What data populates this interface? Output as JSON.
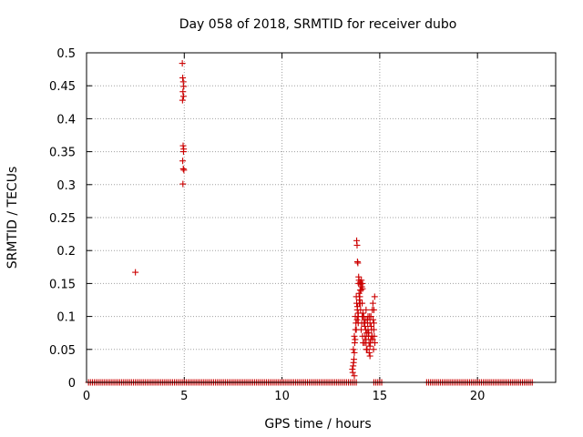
{
  "chart_data": {
    "type": "scatter",
    "title": "Day 058 of 2018, SRMTID for receiver dubo",
    "xlabel": "GPS time / hours",
    "ylabel": "SRMTID / TECUs",
    "xlim": [
      0,
      24
    ],
    "ylim": [
      0,
      0.5
    ],
    "xticks": [
      0,
      5,
      10,
      15,
      20
    ],
    "xtick_labels": [
      "0",
      "5",
      "10",
      "15",
      "20"
    ],
    "yticks": [
      0,
      0.05,
      0.1,
      0.15,
      0.2,
      0.25,
      0.3,
      0.35,
      0.4,
      0.45,
      0.5
    ],
    "ytick_labels": [
      "0",
      "0.05",
      "0.1",
      "0.15",
      "0.2",
      "0.25",
      "0.3",
      "0.35",
      "0.4",
      "0.45",
      "0.5"
    ],
    "grid": true,
    "marker": "+",
    "marker_color": "#cc0000",
    "zero_baseline_segments": [
      [
        0.1,
        13.8
      ],
      [
        14.7,
        15.1
      ],
      [
        17.4,
        22.8
      ]
    ],
    "zero_baseline_step": 0.1,
    "x": [
      2.5,
      4.9,
      4.92,
      4.95,
      4.97,
      4.93,
      4.96,
      4.91,
      4.94,
      4.97,
      4.92,
      4.95,
      4.98,
      4.93,
      4.96,
      13.6,
      13.65,
      13.7,
      13.75,
      13.8,
      13.85,
      13.9,
      13.95,
      14.0,
      14.05,
      14.1,
      14.15,
      14.2,
      14.25,
      14.3,
      14.35,
      14.4,
      14.45,
      14.5,
      14.55,
      14.6,
      14.65,
      14.7,
      14.75,
      13.62,
      13.68,
      13.72,
      13.78,
      13.82,
      13.88,
      13.92,
      13.98,
      14.02,
      14.08,
      14.12,
      14.18,
      14.22,
      14.28,
      14.32,
      14.38,
      14.42,
      14.48,
      14.52,
      14.58,
      14.62,
      14.68,
      14.72,
      13.64,
      13.7,
      13.76,
      13.84,
      13.9,
      13.96,
      14.04,
      14.1,
      14.16,
      14.24,
      14.3,
      14.36,
      14.44,
      14.5,
      14.56,
      14.64,
      14.7,
      13.66,
      13.74,
      13.86,
      13.94,
      14.06,
      14.14,
      14.26,
      14.34,
      14.46,
      14.54,
      14.66,
      14.74,
      13.7,
      13.8,
      13.9,
      14.0,
      14.1,
      14.2,
      14.3,
      14.4,
      14.5,
      14.6,
      14.7,
      13.82,
      13.84,
      13.86,
      13.88,
      13.92,
      13.94,
      14.0,
      14.02,
      14.08,
      14.12
    ],
    "y": [
      0.167,
      0.484,
      0.462,
      0.456,
      0.449,
      0.441,
      0.434,
      0.428,
      0.359,
      0.354,
      0.336,
      0.324,
      0.322,
      0.301,
      0.35,
      0.02,
      0.05,
      0.07,
      0.1,
      0.13,
      0.11,
      0.09,
      0.12,
      0.14,
      0.08,
      0.1,
      0.06,
      0.09,
      0.07,
      0.11,
      0.05,
      0.08,
      0.06,
      0.09,
      0.1,
      0.07,
      0.12,
      0.08,
      0.06,
      0.015,
      0.035,
      0.06,
      0.09,
      0.12,
      0.1,
      0.15,
      0.13,
      0.11,
      0.09,
      0.07,
      0.1,
      0.06,
      0.08,
      0.05,
      0.09,
      0.07,
      0.1,
      0.06,
      0.08,
      0.11,
      0.05,
      0.07,
      0.025,
      0.045,
      0.08,
      0.095,
      0.105,
      0.125,
      0.14,
      0.12,
      0.1,
      0.085,
      0.065,
      0.095,
      0.075,
      0.055,
      0.085,
      0.065,
      0.09,
      0.03,
      0.065,
      0.115,
      0.135,
      0.155,
      0.105,
      0.095,
      0.075,
      0.045,
      0.065,
      0.095,
      0.13,
      0.01,
      0.08,
      0.1,
      0.12,
      0.15,
      0.09,
      0.06,
      0.1,
      0.04,
      0.07,
      0.11,
      0.215,
      0.208,
      0.183,
      0.181,
      0.16,
      0.155,
      0.152,
      0.148,
      0.145,
      0.142
    ]
  }
}
